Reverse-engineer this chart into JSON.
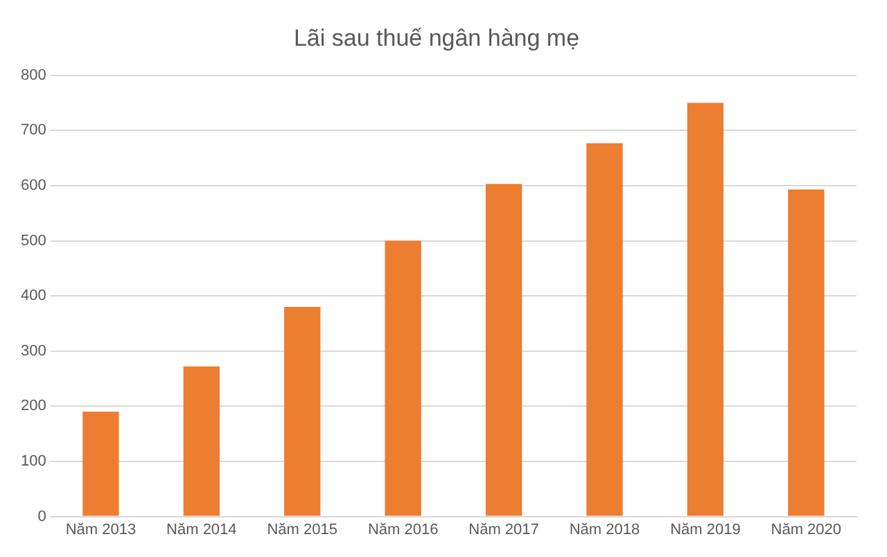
{
  "chart_data": {
    "type": "bar",
    "title": "Lãi sau thuế ngân hàng mẹ",
    "categories": [
      "Năm 2013",
      "Năm 2014",
      "Năm 2015",
      "Năm 2016",
      "Năm 2017",
      "Năm 2018",
      "Năm 2019",
      "Năm 2020"
    ],
    "values": [
      190,
      272,
      380,
      500,
      603,
      677,
      750,
      593
    ],
    "color": "#ed7d31",
    "ylim": [
      0,
      800
    ],
    "yticks": [
      0,
      100,
      200,
      300,
      400,
      500,
      600,
      700,
      800
    ],
    "grid": "y",
    "legend": false
  }
}
